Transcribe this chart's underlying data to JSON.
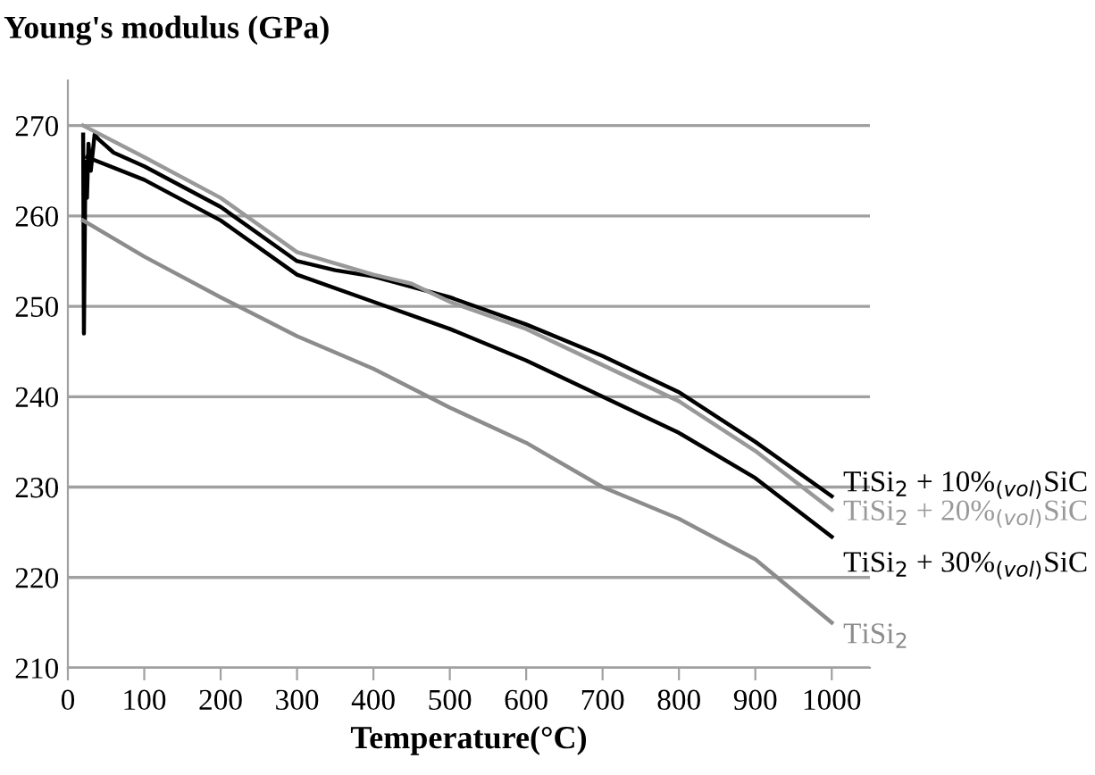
{
  "chart_data": {
    "type": "line",
    "xlabel": "Temperature(°C)",
    "ylabel": "Young's modulus (GPa)",
    "xlim": [
      0,
      1050
    ],
    "xticks": [
      0,
      100,
      200,
      300,
      400,
      500,
      600,
      700,
      800,
      900,
      1000
    ],
    "ylim": [
      210,
      275
    ],
    "yticks": [
      210,
      220,
      230,
      240,
      250,
      260,
      270
    ],
    "grid": "y",
    "legend": false,
    "marker": "none",
    "line_style": "solid",
    "series": [
      {
        "name": "TiSi$_{2}$ + 10%$_{(vol)}$SiC",
        "color": "#000000",
        "x": [
          20,
          21,
          23,
          25,
          27,
          30,
          35,
          40,
          60,
          100,
          200,
          300,
          350,
          400,
          500,
          600,
          700,
          800,
          900,
          1000
        ],
        "values": [
          269,
          247,
          266,
          262,
          268,
          265,
          269,
          268.5,
          267,
          265.5,
          261,
          255,
          254,
          253.3,
          251,
          248,
          244.5,
          240.5,
          235,
          229
        ]
      },
      {
        "name": "TiSi$_{2}$ + 20%$_{(vol)}$SiC",
        "color": "#999999",
        "x": [
          20,
          100,
          200,
          300,
          400,
          450,
          500,
          600,
          700,
          800,
          900,
          1000
        ],
        "values": [
          270,
          266.5,
          262,
          256,
          253.5,
          252.5,
          250.5,
          247.5,
          243.5,
          239.5,
          234,
          227.5
        ]
      },
      {
        "name": "TiSi$_{2}$ + 30%$_{(vol)}$SiC",
        "color": "#000000",
        "x": [
          25,
          100,
          200,
          300,
          400,
          500,
          600,
          700,
          800,
          900,
          1000
        ],
        "values": [
          266.5,
          264,
          259.5,
          253.5,
          250.5,
          247.5,
          244,
          240,
          236,
          231,
          224.5
        ]
      },
      {
        "name": "TiSi$_{2}$",
        "color": "#8c8c8c",
        "x": [
          20,
          100,
          200,
          300,
          400,
          500,
          600,
          700,
          800,
          900,
          1000
        ],
        "values": [
          259.5,
          255.5,
          251,
          246.7,
          243.1,
          238.8,
          234.9,
          230,
          226.5,
          222,
          215
        ]
      }
    ]
  }
}
